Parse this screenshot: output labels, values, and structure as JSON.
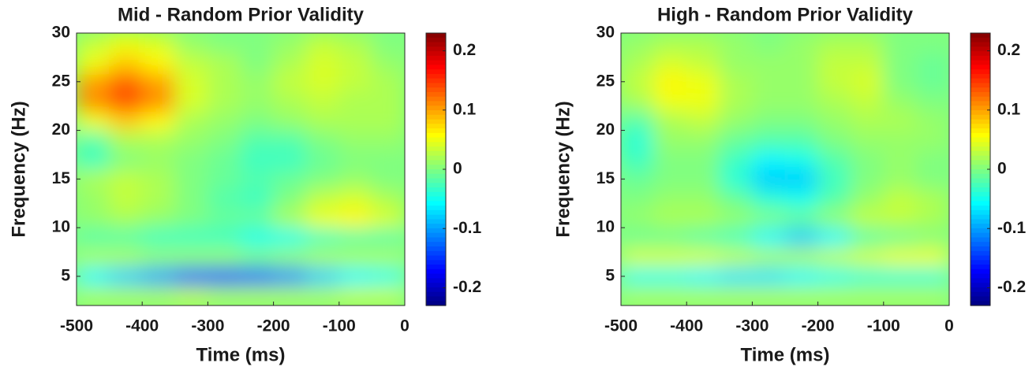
{
  "chart_data": [
    {
      "type": "heatmap",
      "title": "Mid - Random Prior Validity",
      "xlabel": "Time (ms)",
      "ylabel": "Frequency (Hz)",
      "x": [
        -475,
        -425,
        -375,
        -325,
        -275,
        -225,
        -175,
        -125,
        -75,
        -25
      ],
      "y": [
        3,
        5,
        7,
        9,
        11,
        13,
        15,
        17,
        19,
        21,
        23,
        25,
        27,
        29
      ],
      "z": [
        [
          0.02,
          0.02,
          0.02,
          0.03,
          0.02,
          0.02,
          0.02,
          0.02,
          0.03,
          0.03
        ],
        [
          -0.06,
          -0.08,
          -0.1,
          -0.13,
          -0.14,
          -0.13,
          -0.11,
          -0.08,
          -0.06,
          -0.05
        ],
        [
          0.02,
          0.02,
          0.01,
          0.01,
          0.01,
          0.0,
          0.01,
          0.02,
          0.02,
          0.02
        ],
        [
          -0.02,
          -0.02,
          -0.03,
          -0.03,
          -0.03,
          -0.05,
          -0.05,
          -0.03,
          -0.02,
          -0.02
        ],
        [
          0.01,
          0.02,
          0.01,
          0.0,
          -0.01,
          -0.01,
          0.02,
          0.05,
          0.06,
          0.04
        ],
        [
          0.01,
          0.03,
          0.02,
          0.0,
          -0.02,
          -0.03,
          0.0,
          0.03,
          0.04,
          0.02
        ],
        [
          0.02,
          0.03,
          0.02,
          0.0,
          -0.01,
          -0.02,
          -0.01,
          0.0,
          0.01,
          0.0
        ],
        [
          -0.03,
          0.0,
          0.01,
          0.0,
          -0.01,
          -0.03,
          -0.03,
          -0.01,
          0.0,
          0.0
        ],
        [
          -0.02,
          0.02,
          0.02,
          0.01,
          0.0,
          -0.02,
          -0.02,
          0.0,
          0.01,
          0.01
        ],
        [
          0.05,
          0.08,
          0.06,
          0.02,
          0.01,
          0.0,
          0.01,
          0.02,
          0.02,
          0.02
        ],
        [
          0.11,
          0.14,
          0.11,
          0.04,
          0.02,
          0.01,
          0.02,
          0.03,
          0.02,
          0.02
        ],
        [
          0.1,
          0.13,
          0.1,
          0.04,
          0.02,
          0.01,
          0.03,
          0.04,
          0.03,
          0.02
        ],
        [
          0.05,
          0.08,
          0.06,
          0.03,
          0.02,
          0.0,
          0.02,
          0.04,
          0.03,
          0.01
        ],
        [
          0.03,
          0.05,
          0.04,
          0.01,
          0.0,
          0.0,
          0.01,
          0.03,
          0.02,
          0.0
        ]
      ],
      "xlim": [
        -500,
        0
      ],
      "ylim": [
        2,
        30
      ],
      "xticks": [
        -500,
        -400,
        -300,
        -200,
        -100,
        0
      ],
      "yticks": [
        5,
        10,
        15,
        20,
        25,
        30
      ],
      "colormap": "jet",
      "clim": [
        -0.23,
        0.23
      ],
      "cticks": [
        -0.2,
        -0.1,
        0,
        0.1,
        0.2
      ]
    },
    {
      "type": "heatmap",
      "title": "High - Random Prior Validity",
      "xlabel": "Time (ms)",
      "ylabel": "Frequency (Hz)",
      "x": [
        -475,
        -425,
        -375,
        -325,
        -275,
        -225,
        -175,
        -125,
        -75,
        -25
      ],
      "y": [
        3,
        5,
        7,
        9,
        11,
        13,
        15,
        17,
        19,
        21,
        23,
        25,
        27,
        29
      ],
      "z": [
        [
          0.02,
          0.02,
          0.02,
          0.02,
          0.02,
          0.02,
          0.02,
          0.02,
          0.02,
          0.02
        ],
        [
          -0.05,
          -0.05,
          -0.06,
          -0.07,
          -0.07,
          -0.06,
          -0.05,
          -0.04,
          -0.04,
          -0.04
        ],
        [
          0.04,
          0.04,
          0.04,
          0.03,
          0.02,
          0.02,
          0.03,
          0.04,
          0.05,
          0.05
        ],
        [
          -0.01,
          -0.01,
          -0.02,
          -0.03,
          -0.06,
          -0.08,
          -0.06,
          -0.02,
          -0.01,
          0.0
        ],
        [
          0.01,
          0.02,
          0.02,
          0.01,
          0.0,
          -0.01,
          0.01,
          0.03,
          0.03,
          0.02
        ],
        [
          0.0,
          0.01,
          0.01,
          -0.01,
          -0.04,
          -0.05,
          -0.02,
          0.01,
          0.03,
          0.02
        ],
        [
          -0.01,
          0.0,
          0.0,
          -0.04,
          -0.08,
          -0.08,
          -0.03,
          0.0,
          0.01,
          0.0
        ],
        [
          -0.03,
          0.0,
          0.0,
          -0.03,
          -0.06,
          -0.05,
          -0.02,
          0.0,
          0.01,
          0.0
        ],
        [
          -0.04,
          0.01,
          0.01,
          -0.01,
          -0.02,
          -0.02,
          0.0,
          0.01,
          0.01,
          0.01
        ],
        [
          -0.02,
          0.02,
          0.03,
          0.01,
          0.0,
          0.0,
          0.01,
          0.02,
          0.02,
          0.01
        ],
        [
          0.02,
          0.05,
          0.05,
          0.02,
          0.01,
          0.01,
          0.02,
          0.03,
          0.01,
          0.0
        ],
        [
          0.03,
          0.06,
          0.05,
          0.02,
          0.01,
          0.01,
          0.03,
          0.04,
          0.0,
          -0.01
        ],
        [
          0.02,
          0.04,
          0.03,
          0.01,
          0.01,
          0.01,
          0.03,
          0.03,
          0.0,
          -0.01
        ],
        [
          0.01,
          0.02,
          0.02,
          0.01,
          0.0,
          0.01,
          0.02,
          0.02,
          0.0,
          0.0
        ]
      ],
      "xlim": [
        -500,
        0
      ],
      "ylim": [
        2,
        30
      ],
      "xticks": [
        -500,
        -400,
        -300,
        -200,
        -100,
        0
      ],
      "yticks": [
        5,
        10,
        15,
        20,
        25,
        30
      ],
      "colormap": "jet",
      "clim": [
        -0.23,
        0.23
      ],
      "cticks": [
        -0.2,
        -0.1,
        0,
        0.1,
        0.2
      ]
    }
  ]
}
